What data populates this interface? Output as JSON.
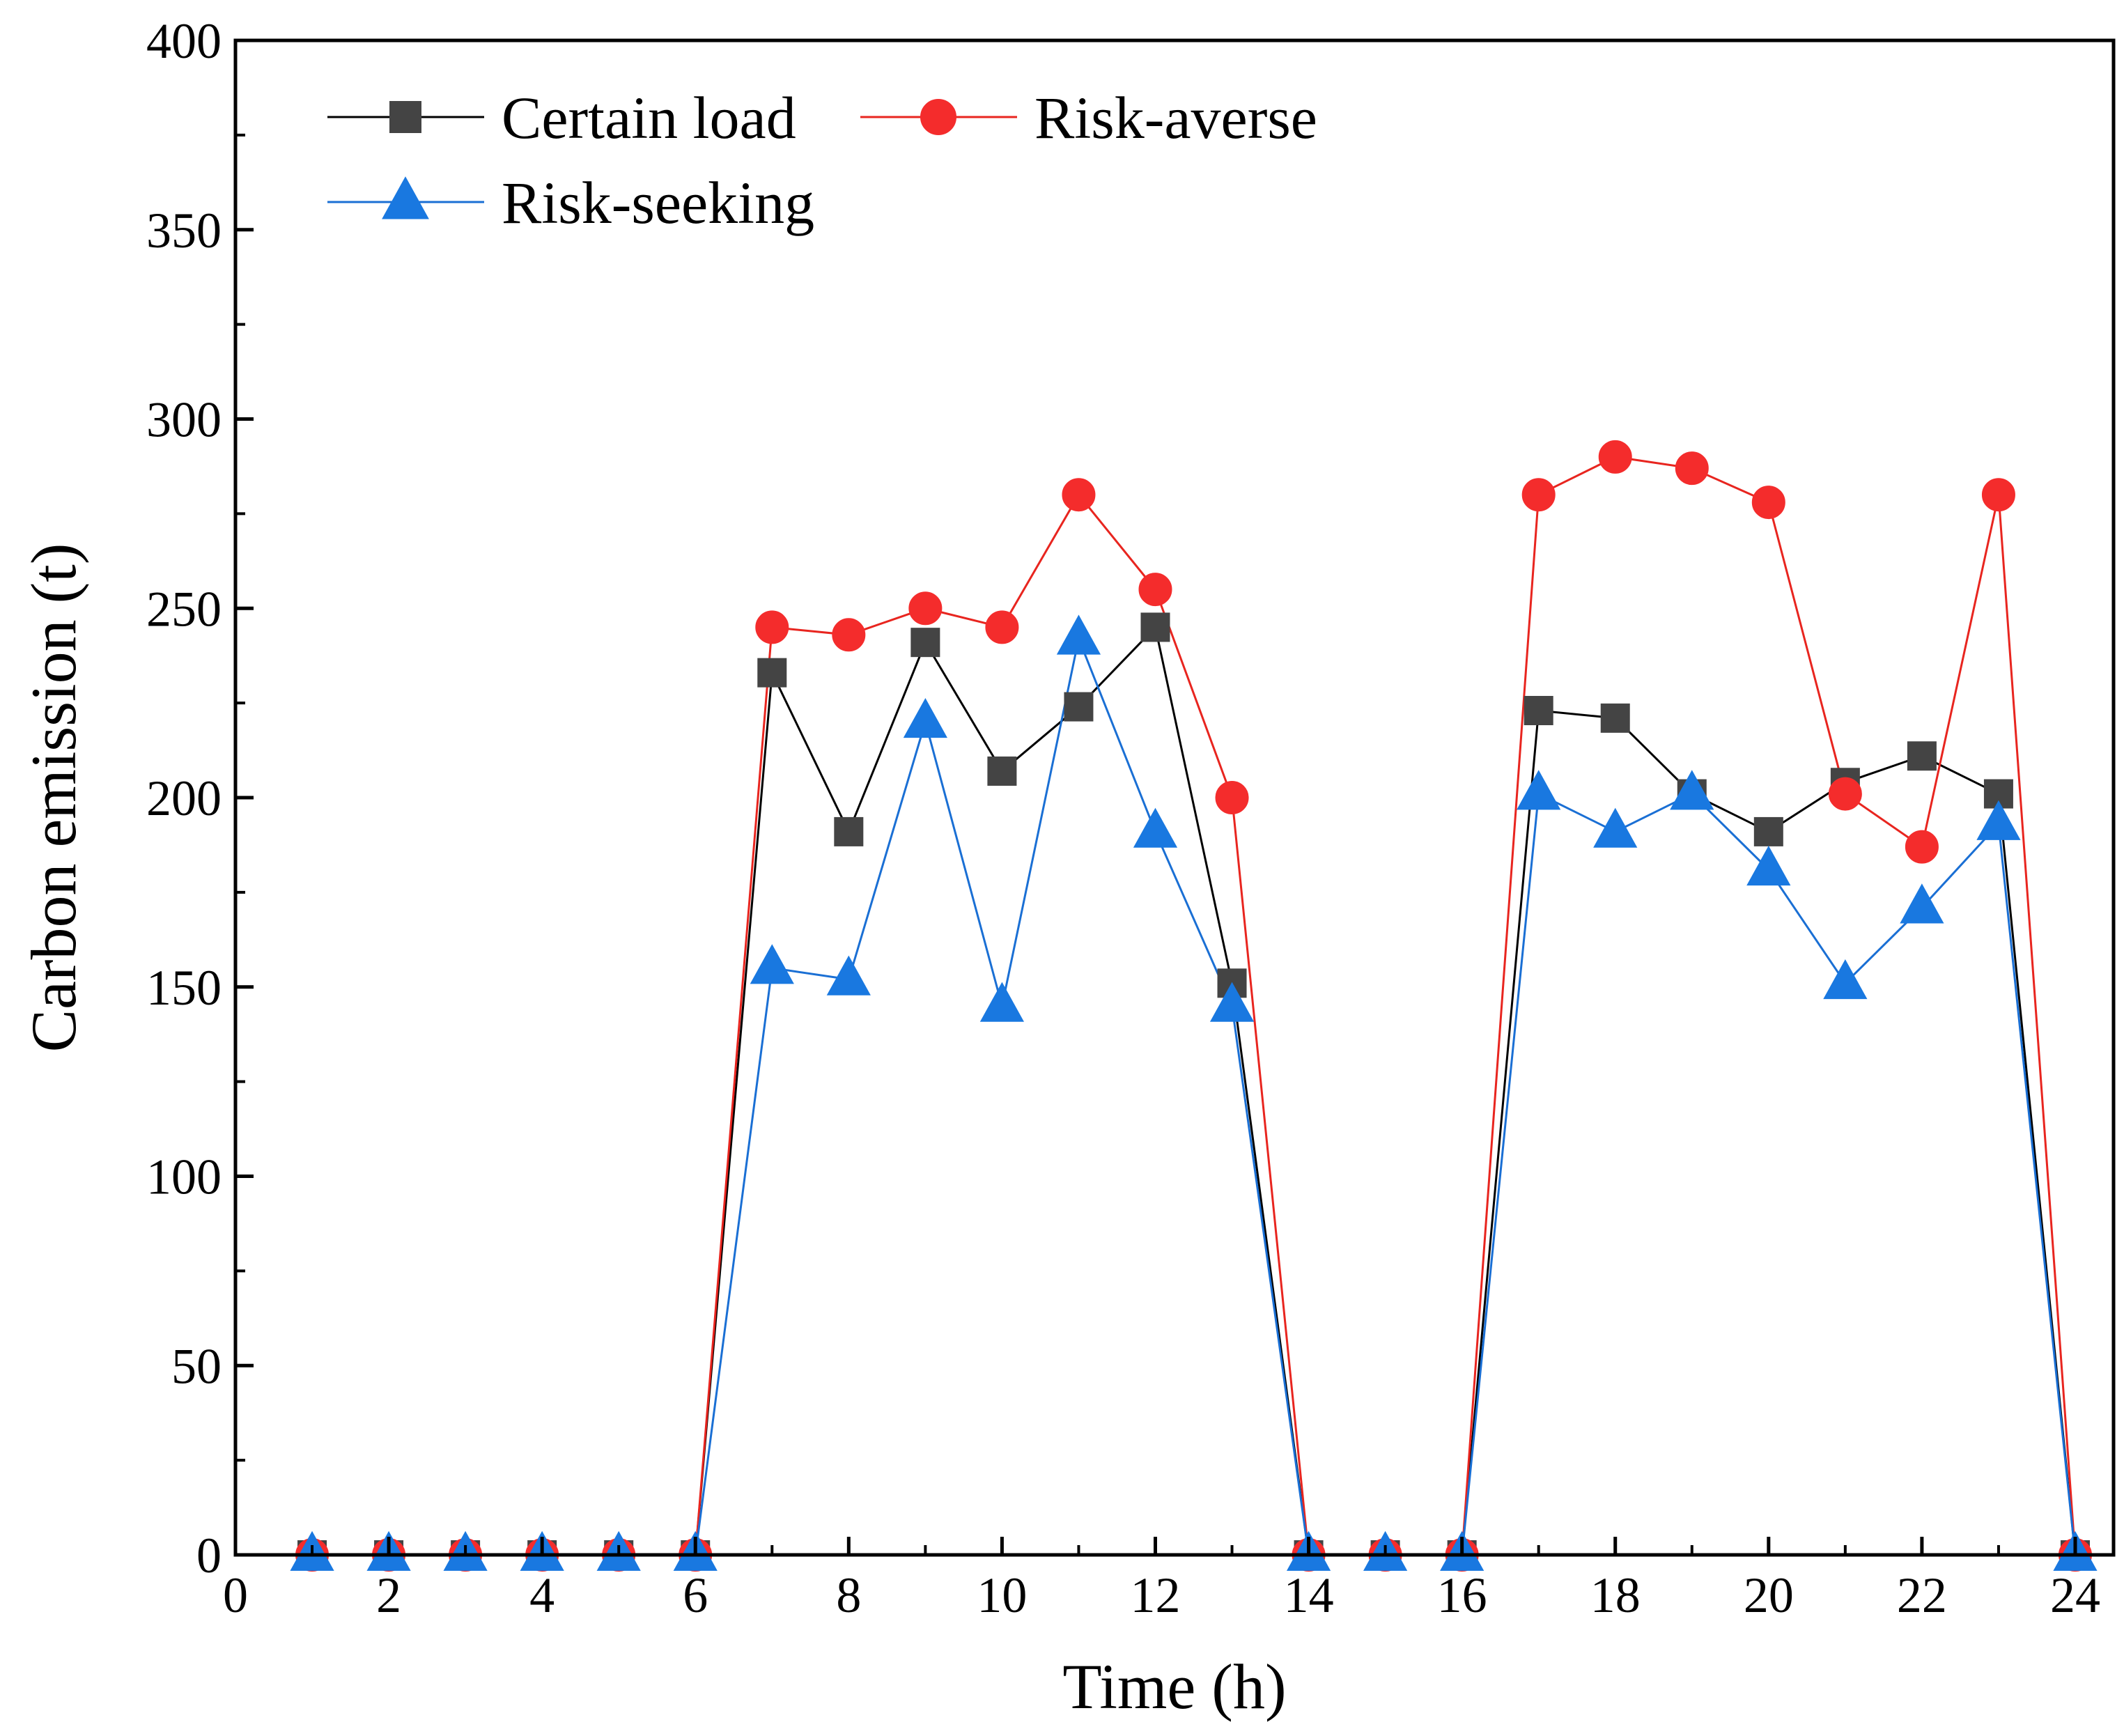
{
  "chart_data": {
    "type": "line",
    "title": "",
    "xlabel": "Time (h)",
    "ylabel": "Carbon emission (t)",
    "xlim": [
      0,
      24.5
    ],
    "ylim": [
      0,
      400
    ],
    "xticks": [
      0,
      2,
      4,
      6,
      8,
      10,
      12,
      14,
      16,
      18,
      20,
      22,
      24
    ],
    "yticks": [
      0,
      50,
      100,
      150,
      200,
      250,
      300,
      350,
      400
    ],
    "grid": false,
    "legend_position": "top-left",
    "x": [
      1,
      2,
      3,
      4,
      5,
      6,
      7,
      8,
      9,
      10,
      11,
      12,
      13,
      14,
      15,
      16,
      17,
      18,
      19,
      20,
      21,
      22,
      23,
      24
    ],
    "series": [
      {
        "name": "Certain load",
        "color": "#000000",
        "marker_color": "#444444",
        "marker": "square",
        "values": [
          0,
          0,
          0,
          0,
          0,
          0,
          233,
          191,
          241,
          207,
          224,
          245,
          151,
          0,
          0,
          0,
          223,
          221,
          201,
          191,
          204,
          211,
          201,
          0
        ]
      },
      {
        "name": "Risk-averse",
        "color": "#e8251f",
        "marker_color": "#f42c2c",
        "marker": "circle",
        "values": [
          0,
          0,
          0,
          0,
          0,
          0,
          245,
          243,
          250,
          245,
          280,
          255,
          200,
          0,
          0,
          0,
          280,
          290,
          287,
          278,
          201,
          187,
          280,
          0
        ]
      },
      {
        "name": "Risk-seeking",
        "color": "#1a6fd4",
        "marker_color": "#1978e0",
        "marker": "triangle",
        "values": [
          0,
          0,
          0,
          0,
          0,
          0,
          155,
          152,
          220,
          145,
          242,
          191,
          145,
          0,
          0,
          0,
          201,
          191,
          201,
          181,
          151,
          171,
          193,
          0
        ]
      }
    ]
  }
}
